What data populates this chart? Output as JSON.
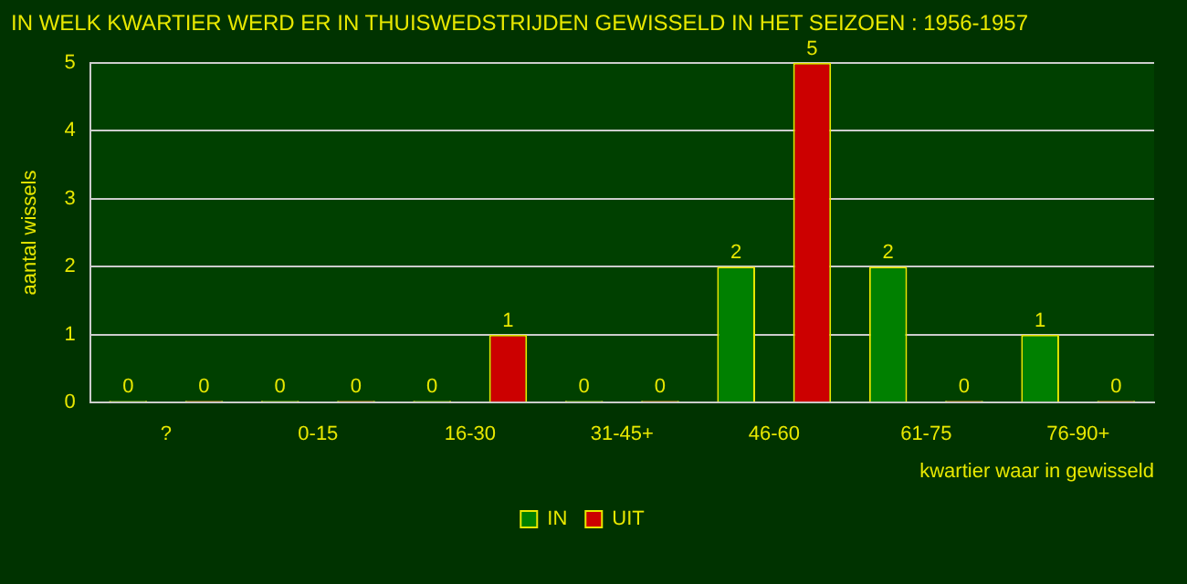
{
  "chart_data": {
    "type": "bar",
    "title": "IN WELK KWARTIER WERD ER IN THUISWEDSTRIJDEN GEWISSELD IN HET SEIZOEN : 1956-1957",
    "xlabel": "kwartier waar in gewisseld",
    "ylabel": "aantal wissels",
    "categories": [
      "?",
      "0-15",
      "16-30",
      "31-45+",
      "46-60",
      "61-75",
      "76-90+"
    ],
    "series": [
      {
        "name": "IN",
        "color": "#008000",
        "values": [
          0,
          0,
          0,
          0,
          2,
          2,
          1
        ]
      },
      {
        "name": "UIT",
        "color": "#cc0000",
        "values": [
          0,
          0,
          1,
          0,
          5,
          0,
          0
        ]
      }
    ],
    "ylim": [
      0,
      5
    ],
    "yticks": [
      0,
      1,
      2,
      3,
      4,
      5
    ],
    "grid": "y",
    "legend": "bottom",
    "data_labels": true
  }
}
